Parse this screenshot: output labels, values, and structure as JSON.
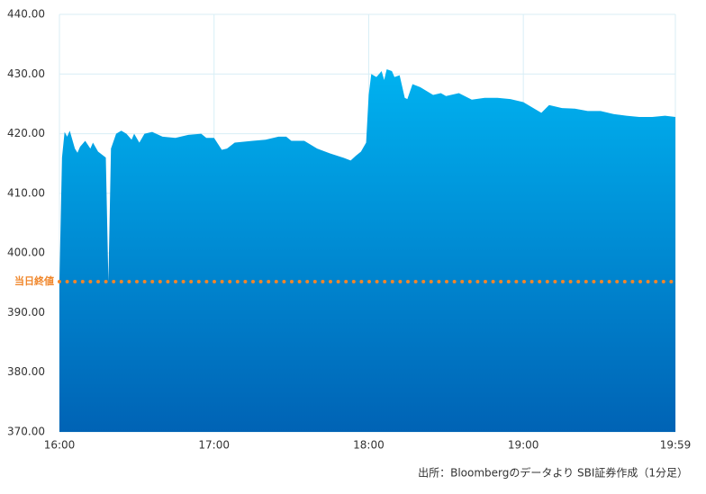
{
  "chart_data": {
    "type": "area",
    "x": [
      "16:00",
      "16:01",
      "16:02",
      "16:03",
      "16:04",
      "16:06",
      "16:07",
      "16:08",
      "16:10",
      "16:12",
      "16:13",
      "16:15",
      "16:18",
      "16:19",
      "16:20",
      "16:22",
      "16:24",
      "16:26",
      "16:28",
      "16:29",
      "16:31",
      "16:33",
      "16:36",
      "16:40",
      "16:45",
      "16:50",
      "16:55",
      "16:57",
      "17:00",
      "17:03",
      "17:05",
      "17:08",
      "17:15",
      "17:20",
      "17:25",
      "17:28",
      "17:30",
      "17:35",
      "17:40",
      "17:45",
      "17:50",
      "17:53",
      "17:55",
      "17:57",
      "17:59",
      "18:00",
      "18:01",
      "18:03",
      "18:05",
      "18:06",
      "18:07",
      "18:09",
      "18:10",
      "18:12",
      "18:14",
      "18:15",
      "18:17",
      "18:20",
      "18:25",
      "18:28",
      "18:30",
      "18:35",
      "18:40",
      "18:45",
      "18:50",
      "18:55",
      "19:00",
      "19:05",
      "19:07",
      "19:10",
      "19:15",
      "19:20",
      "19:25",
      "19:30",
      "19:35",
      "19:40",
      "19:45",
      "19:50",
      "19:55",
      "19:59"
    ],
    "values": [
      395.2,
      416,
      420.3,
      419.5,
      420.5,
      417.5,
      416.8,
      417.8,
      418.8,
      417.5,
      418.5,
      417,
      416,
      395.2,
      417.5,
      420,
      420.5,
      420,
      419,
      420,
      418.5,
      420,
      420.3,
      419.5,
      419.3,
      419.8,
      420,
      419.3,
      419.3,
      417.3,
      417.5,
      418.5,
      418.8,
      419,
      419.5,
      419.5,
      418.8,
      418.8,
      417.5,
      416.7,
      416,
      415.5,
      416.3,
      417,
      418.5,
      426.5,
      430,
      429.5,
      430.5,
      429,
      430.8,
      430.5,
      429.5,
      429.8,
      426,
      425.8,
      428.3,
      427.8,
      426.5,
      426.8,
      426.3,
      426.8,
      425.7,
      426,
      426,
      425.8,
      425.3,
      424,
      423.5,
      424.8,
      424.3,
      424.2,
      423.8,
      423.8,
      423.3,
      423,
      422.8,
      422.8,
      423,
      422.8
    ],
    "colors": [
      "#00b2f0",
      "#0063b5"
    ],
    "xlim": [
      "16:00",
      "19:59"
    ],
    "xticks": [
      "16:00",
      "17:00",
      "18:00",
      "19:00",
      "19:59"
    ],
    "ylim": [
      370,
      440
    ],
    "yticks": [
      {
        "value": 370,
        "label": "370.00"
      },
      {
        "value": 380,
        "label": "380.00"
      },
      {
        "value": 390,
        "label": "390.00"
      },
      {
        "value": 400,
        "label": "400.00"
      },
      {
        "value": 410,
        "label": "410.00"
      },
      {
        "value": 420,
        "label": "420.00"
      },
      {
        "value": 430,
        "label": "430.00"
      },
      {
        "value": 440,
        "label": "440.00"
      }
    ],
    "grid": true,
    "reference_line": {
      "label": "当日終値",
      "value": 395.2,
      "color": "#f0862a"
    },
    "source": "出所：Bloombergのデータより SBI証券作成（1分足）"
  }
}
